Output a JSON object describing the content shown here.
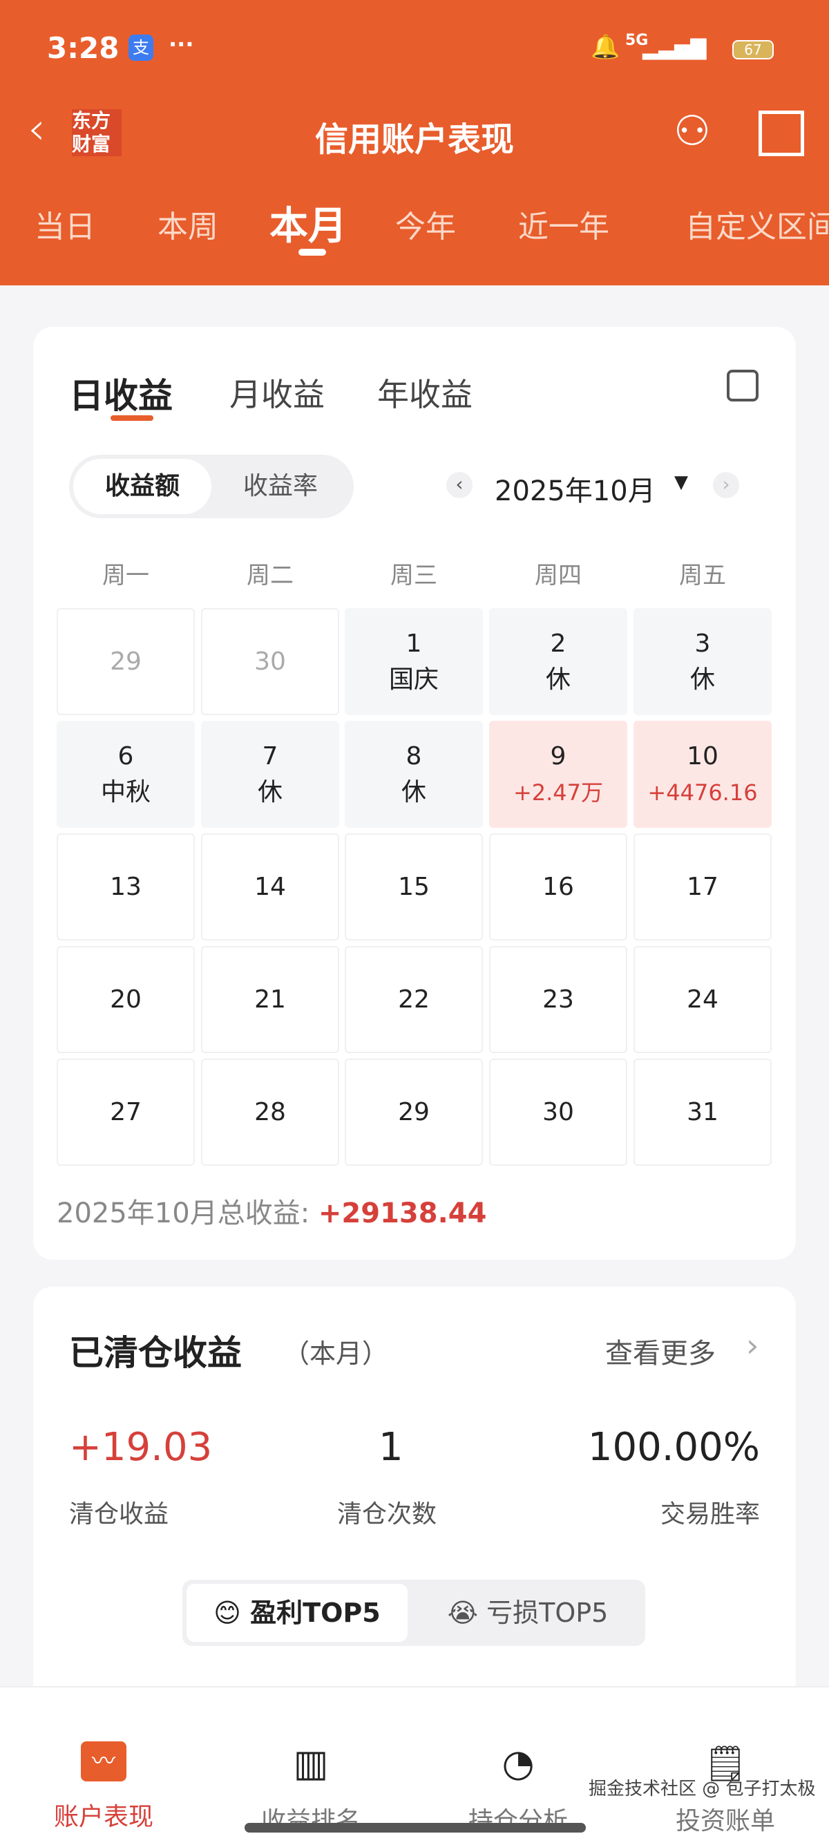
{
  "status_bar": {
    "time": "3:28",
    "alipay": "支",
    "dots": "···",
    "network": "5G",
    "battery": "67"
  },
  "header": {
    "title": "信用账户表现",
    "logo": "东方财富",
    "tabs": [
      "当日",
      "本周",
      "本月",
      "今年",
      "近一年",
      "自定义区间"
    ],
    "active_tab": 2,
    "accent": "#e85d2c"
  },
  "calendar_card": {
    "tabs": [
      "日收益",
      "月收益",
      "年收益"
    ],
    "toggle": [
      "收益额",
      "收益率"
    ],
    "month": "2025年10月",
    "weekdays": [
      "周一",
      "周二",
      "周三",
      "周四",
      "周五"
    ],
    "days": [
      {
        "d": "29",
        "s": "",
        "t": "out"
      },
      {
        "d": "30",
        "s": "",
        "t": "out"
      },
      {
        "d": "1",
        "s": "国庆",
        "t": "gray"
      },
      {
        "d": "2",
        "s": "休",
        "t": "gray"
      },
      {
        "d": "3",
        "s": "休",
        "t": "gray"
      },
      {
        "d": "6",
        "s": "中秋",
        "t": "gray"
      },
      {
        "d": "7",
        "s": "休",
        "t": "gray"
      },
      {
        "d": "8",
        "s": "休",
        "t": "gray"
      },
      {
        "d": "9",
        "s": "+2.47万",
        "t": "red"
      },
      {
        "d": "10",
        "s": "+4476.16",
        "t": "red"
      },
      {
        "d": "13",
        "s": "",
        "t": ""
      },
      {
        "d": "14",
        "s": "",
        "t": ""
      },
      {
        "d": "15",
        "s": "",
        "t": ""
      },
      {
        "d": "16",
        "s": "",
        "t": ""
      },
      {
        "d": "17",
        "s": "",
        "t": ""
      },
      {
        "d": "20",
        "s": "",
        "t": ""
      },
      {
        "d": "21",
        "s": "",
        "t": ""
      },
      {
        "d": "22",
        "s": "",
        "t": ""
      },
      {
        "d": "23",
        "s": "",
        "t": ""
      },
      {
        "d": "24",
        "s": "",
        "t": ""
      },
      {
        "d": "27",
        "s": "",
        "t": ""
      },
      {
        "d": "28",
        "s": "",
        "t": ""
      },
      {
        "d": "29",
        "s": "",
        "t": ""
      },
      {
        "d": "30",
        "s": "",
        "t": ""
      },
      {
        "d": "31",
        "s": "",
        "t": ""
      }
    ],
    "total_label": "2025年10月总收益: ",
    "total_value": "+29138.44"
  },
  "cleared_card": {
    "title": "已清仓收益",
    "subtitle": "（本月）",
    "more": "查看更多",
    "stats": [
      {
        "value": "+19.03",
        "label": "清仓收益"
      },
      {
        "value": "1",
        "label": "清仓次数"
      },
      {
        "value": "100.00%",
        "label": "交易胜率"
      }
    ],
    "toggle": [
      "盈利TOP5",
      "亏损TOP5"
    ]
  },
  "bottom_nav": [
    {
      "label": "账户表现",
      "icon": "chart-icon"
    },
    {
      "label": "收益排名",
      "icon": "bar-icon"
    },
    {
      "label": "持仓分析",
      "icon": "pie-icon"
    },
    {
      "label": "投资账单",
      "icon": "bill-icon"
    }
  ],
  "watermark": "掘金技术社区 @ 包子打太极"
}
